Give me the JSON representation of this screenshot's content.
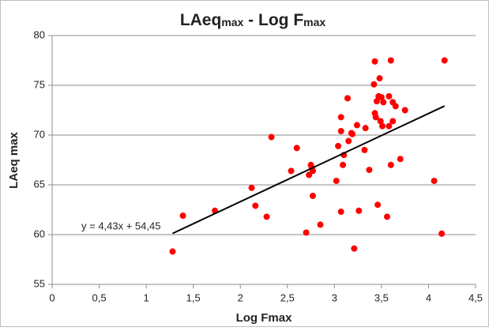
{
  "chart_data": {
    "type": "scatter",
    "title": [
      "LAeq",
      "max",
      " - Log F",
      "max"
    ],
    "x_label": "Log Fmax",
    "y_label": "LAeq max",
    "color": "#ff0000",
    "grid": true,
    "xlim": [
      0,
      4.5
    ],
    "ylim": [
      55,
      80
    ],
    "xticks": [
      0,
      {
        "value": 0.5,
        "label": "0,5"
      },
      1,
      {
        "value": 1.5,
        "label": "1,5"
      },
      2,
      {
        "value": 2.5,
        "label": "2,5"
      },
      3,
      {
        "value": 3.5,
        "label": "3,5"
      },
      4,
      {
        "value": 4.5,
        "label": "4,5"
      }
    ],
    "yticks": [
      55,
      60,
      65,
      70,
      75,
      80
    ],
    "x": [
      1.28,
      1.39,
      1.73,
      2.12,
      2.16,
      2.28,
      2.33,
      2.54,
      2.6,
      2.7,
      2.85,
      2.73,
      2.75,
      2.76,
      2.77,
      2.77,
      3.02,
      3.04,
      3.07,
      3.07,
      3.09,
      3.1,
      3.07,
      3.14,
      3.15,
      3.18,
      3.19,
      3.24,
      3.21,
      3.26,
      3.32,
      3.33,
      3.37,
      3.42,
      3.43,
      3.43,
      3.44,
      3.45,
      3.47,
      3.46,
      3.48,
      3.5,
      3.49,
      3.51,
      3.52,
      3.56,
      3.58,
      3.58,
      3.6,
      3.6,
      3.62,
      3.62,
      3.65,
      3.7,
      3.75,
      4.06,
      4.14,
      4.17
    ],
    "values": [
      58.3,
      61.9,
      62.4,
      64.7,
      62.9,
      61.8,
      69.8,
      66.4,
      68.7,
      60.2,
      61.0,
      66.0,
      67.0,
      66.7,
      66.4,
      63.9,
      65.4,
      68.9,
      71.8,
      70.4,
      67.0,
      68.0,
      62.3,
      73.7,
      69.4,
      70.2,
      70.1,
      71.0,
      58.6,
      62.4,
      68.5,
      70.7,
      66.5,
      75.1,
      77.4,
      72.2,
      71.8,
      73.4,
      73.9,
      63.0,
      75.7,
      73.8,
      71.4,
      70.9,
      73.3,
      61.8,
      73.9,
      70.9,
      77.5,
      67.0,
      73.3,
      71.4,
      72.9,
      67.6,
      72.5,
      65.4,
      60.1,
      77.5
    ],
    "trendline": {
      "label": "y = 4,43x + 54,45",
      "slope": 4.43,
      "intercept": 54.45,
      "x": [
        1.28,
        4.17
      ],
      "color": "#000000"
    }
  }
}
